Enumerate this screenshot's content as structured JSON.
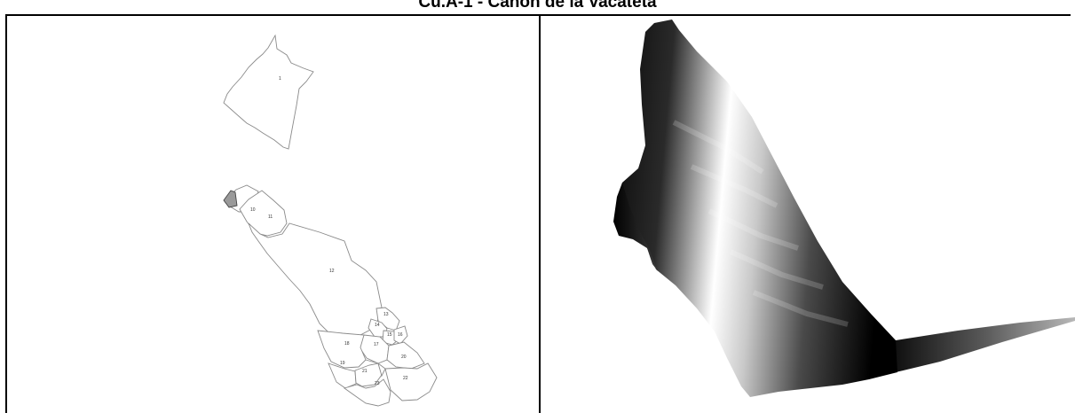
{
  "title": "Cu.A-1 - Cañón de la Vacateta",
  "left_panel": {
    "zone_labels": [
      "1",
      "10",
      "11",
      "12",
      "13",
      "14",
      "15",
      "16",
      "17",
      "18",
      "19",
      "20",
      "21",
      "22",
      "23"
    ]
  },
  "right_panel": {
    "colors": {
      "low": "#000000",
      "high": "#ffffff",
      "background": "#ffffff"
    }
  }
}
